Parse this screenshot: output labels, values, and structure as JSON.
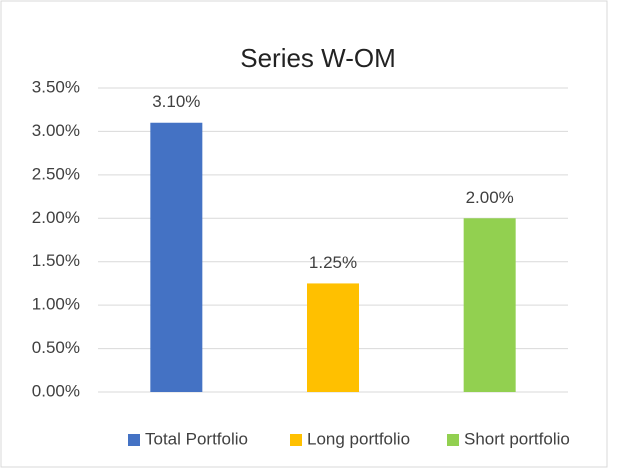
{
  "chart_data": {
    "type": "bar",
    "title": "Series W-OM",
    "categories": [
      "Total Portfolio",
      "Long portfolio",
      "Short portfolio"
    ],
    "values": [
      3.1,
      1.25,
      2.0
    ],
    "value_labels": [
      "3.10%",
      "1.25%",
      "2.00%"
    ],
    "colors": [
      "#4472c4",
      "#ffc000",
      "#92d050"
    ],
    "ylim": [
      0,
      3.5
    ],
    "yticks": [
      {
        "value": 0,
        "label": "0.00%"
      },
      {
        "value": 0.5,
        "label": "0.50%"
      },
      {
        "value": 1,
        "label": "1.00%"
      },
      {
        "value": 1.5,
        "label": "1.50%"
      },
      {
        "value": 2,
        "label": "2.00%"
      },
      {
        "value": 2.5,
        "label": "2.50%"
      },
      {
        "value": 3,
        "label": "3.00%"
      },
      {
        "value": 3.5,
        "label": "3.50%"
      }
    ],
    "grid": true,
    "legend": "bottom"
  }
}
